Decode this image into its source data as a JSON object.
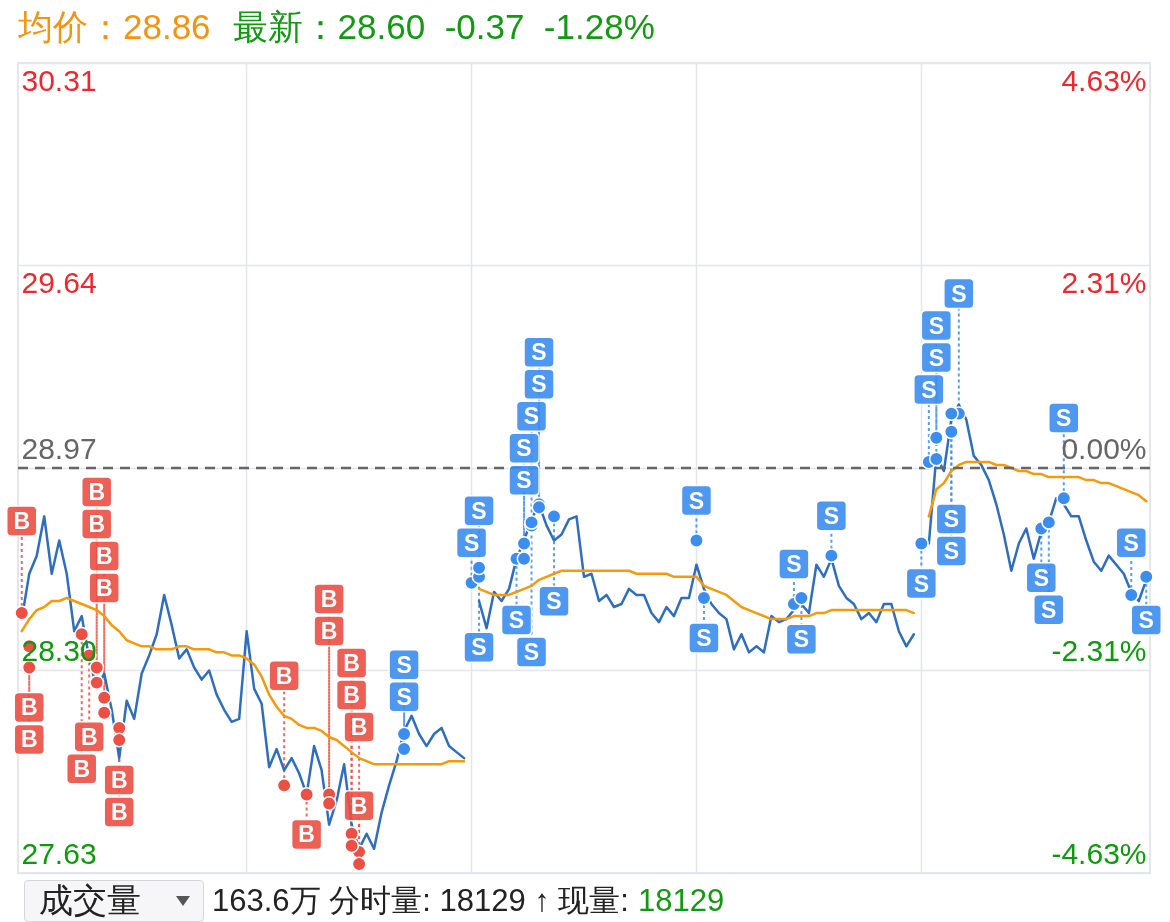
{
  "chart_data": {
    "type": "line",
    "title": "均价：28.86",
    "subtitle": "最新：28.60  -0.37  -1.28%",
    "annotations": [
      "成交量",
      "163.6万 分时量: 18129 ↑ 现量:",
      "18129"
    ],
    "categories": [
      null,
      null,
      null,
      null,
      null,
      null,
      null,
      null,
      null,
      null,
      null,
      null,
      null,
      null,
      null,
      null,
      null,
      null,
      null,
      null,
      null,
      null,
      null,
      null,
      null,
      null,
      null,
      null,
      null,
      null,
      null,
      null,
      null,
      null,
      null,
      null,
      null,
      null,
      null,
      null,
      null,
      null,
      null,
      null,
      null,
      null,
      null,
      null,
      null,
      null,
      null,
      null,
      null,
      null,
      null,
      null,
      null,
      null,
      null,
      null,
      null,
      null,
      null,
      null,
      null,
      null,
      null,
      null,
      null,
      null,
      null,
      null,
      null,
      null,
      null,
      null,
      null,
      null,
      null,
      null,
      null,
      null,
      null,
      null,
      null,
      null,
      null,
      null,
      null,
      null,
      null,
      null,
      null,
      null,
      null,
      null,
      null,
      null,
      null,
      null,
      null,
      null,
      null,
      null,
      null,
      null,
      null,
      null,
      null,
      null,
      null,
      null,
      null,
      null,
      null,
      null,
      null,
      null,
      null,
      null,
      null,
      null,
      null,
      null,
      null,
      null,
      null,
      null,
      null,
      null,
      null,
      null,
      null,
      null,
      null,
      null,
      null,
      null,
      null,
      null,
      null,
      null,
      null,
      null,
      null,
      null,
      null,
      null,
      null,
      null,
      null
    ],
    "series": [
      {
        "type": "line",
        "color": "#2f6ebf",
        "values": [
          28.47,
          28.62,
          28.68,
          28.81,
          28.62,
          28.73,
          28.62,
          28.43,
          28.48,
          28.34,
          28.24,
          28.29,
          28.17,
          28.01,
          28.2,
          28.14,
          28.29,
          28.35,
          28.42,
          28.55,
          28.45,
          28.34,
          28.37,
          28.31,
          28.27,
          28.3,
          28.22,
          28.17,
          28.13,
          28.14,
          28.43,
          28.24,
          28.19,
          27.98,
          28.04,
          27.97,
          28.01,
          27.96,
          27.89,
          28.05,
          27.97,
          27.79,
          27.87,
          27.99,
          27.79,
          27.71,
          27.76,
          27.71,
          27.83,
          27.92,
          28.0,
          28.1,
          28.15,
          28.09,
          28.05,
          28.09,
          28.11,
          28.05,
          28.03,
          28.01,
          null,
          28.53,
          28.44,
          28.56,
          28.53,
          28.57,
          28.67,
          28.73,
          28.8,
          28.85,
          28.78,
          28.73,
          28.75,
          28.8,
          28.81,
          28.61,
          28.62,
          28.53,
          28.55,
          28.51,
          28.52,
          28.57,
          28.55,
          28.55,
          28.49,
          28.46,
          28.51,
          28.48,
          28.54,
          28.54,
          28.65,
          28.57,
          28.52,
          28.49,
          28.47,
          28.37,
          28.42,
          28.36,
          28.38,
          28.36,
          28.48,
          28.46,
          28.47,
          28.5,
          28.52,
          28.49,
          28.65,
          28.61,
          28.67,
          28.58,
          28.54,
          28.52,
          28.47,
          28.49,
          28.46,
          28.52,
          28.52,
          28.43,
          28.38,
          28.42,
          null,
          28.72,
          29.01,
          28.96,
          29.13,
          29.18,
          29.13,
          29.01,
          28.98,
          28.93,
          28.85,
          28.75,
          28.63,
          28.72,
          28.77,
          28.67,
          28.76,
          28.79,
          28.87,
          28.85,
          28.81,
          28.81,
          28.73,
          28.66,
          28.63,
          28.68,
          28.65,
          28.62,
          28.56,
          28.53,
          28.6
        ]
      },
      {
        "type": "line",
        "color": "#f59a0c",
        "values": [
          28.43,
          28.47,
          28.5,
          28.51,
          28.53,
          28.53,
          28.54,
          28.53,
          28.52,
          28.51,
          28.5,
          28.48,
          28.45,
          28.43,
          28.4,
          28.39,
          28.38,
          28.38,
          28.37,
          28.37,
          28.37,
          28.38,
          28.38,
          28.37,
          28.37,
          28.37,
          28.36,
          28.36,
          28.35,
          28.35,
          28.34,
          28.32,
          28.28,
          28.22,
          28.18,
          28.15,
          28.14,
          28.12,
          28.11,
          28.11,
          28.1,
          28.08,
          28.07,
          28.05,
          28.03,
          28.01,
          28.0,
          27.99,
          27.99,
          27.99,
          27.99,
          27.99,
          27.99,
          27.99,
          27.99,
          27.99,
          27.99,
          28.0,
          28.0,
          28.0,
          null,
          28.57,
          28.56,
          28.55,
          28.55,
          28.55,
          28.56,
          28.57,
          28.58,
          28.6,
          28.61,
          28.62,
          28.63,
          28.63,
          28.63,
          28.63,
          28.63,
          28.63,
          28.63,
          28.63,
          28.63,
          28.63,
          28.62,
          28.62,
          28.62,
          28.62,
          28.62,
          28.61,
          28.61,
          28.61,
          28.61,
          28.58,
          28.57,
          28.56,
          28.55,
          28.53,
          28.51,
          28.5,
          28.49,
          28.48,
          28.47,
          28.47,
          28.47,
          28.48,
          28.48,
          28.48,
          28.49,
          28.49,
          28.5,
          28.5,
          28.5,
          28.5,
          28.5,
          28.5,
          28.5,
          28.5,
          28.5,
          28.5,
          28.5,
          28.49,
          null,
          28.81,
          28.9,
          28.92,
          28.96,
          28.98,
          28.99,
          28.99,
          28.99,
          28.99,
          28.98,
          28.98,
          28.97,
          28.96,
          28.96,
          28.95,
          28.95,
          28.94,
          28.94,
          28.94,
          28.94,
          28.94,
          28.93,
          28.93,
          28.92,
          28.92,
          28.91,
          28.9,
          28.89,
          28.88,
          28.86
        ]
      },
      {
        "type": "scatter",
        "color": "#ec4f44",
        "marker": "circle",
        "values": [
          28.49,
          28.38,
          null,
          null,
          null,
          null,
          null,
          null,
          28.42,
          28.35,
          28.31,
          28.21,
          null,
          28.11,
          null,
          null,
          null,
          null,
          null,
          null,
          null,
          null,
          null,
          null,
          null,
          null,
          null,
          null,
          null,
          null,
          null,
          null,
          null,
          null,
          null,
          27.92,
          null,
          null,
          27.89,
          null,
          null,
          27.89,
          null,
          null,
          27.76,
          27.7,
          null,
          null,
          null,
          null,
          null,
          null,
          null,
          null,
          null,
          null,
          null,
          null,
          null,
          null,
          null,
          null,
          null,
          null,
          null,
          null,
          null,
          null,
          null,
          null,
          null,
          null,
          null,
          null,
          null,
          null,
          null,
          null,
          null,
          null,
          null,
          null,
          null,
          null,
          null,
          null,
          null,
          null,
          null,
          null,
          null,
          null,
          null,
          null,
          null,
          null,
          null,
          null,
          null,
          null,
          null,
          null,
          null,
          null,
          null,
          null,
          null,
          null,
          null,
          null,
          null,
          null,
          null,
          null,
          null,
          null,
          null,
          null,
          null,
          null,
          null,
          null,
          null,
          null,
          null,
          null,
          null,
          null,
          null,
          null,
          null,
          null,
          null,
          null,
          null,
          null,
          null,
          null,
          null,
          null,
          null,
          null,
          null,
          null,
          null,
          null,
          null,
          null,
          null,
          null,
          null
        ],
        "value_labels": [
          "B",
          "B",
          null,
          null,
          null,
          null,
          null,
          null,
          "B",
          "B",
          "B",
          "B",
          null,
          "B",
          null,
          null,
          null,
          null,
          null,
          null,
          null,
          null,
          null,
          null,
          null,
          null,
          null,
          null,
          null,
          null,
          null,
          null,
          null,
          null,
          null,
          "B",
          null,
          null,
          "B",
          null,
          null,
          "B",
          null,
          null,
          "B",
          "B",
          null,
          null,
          null,
          null,
          null,
          null,
          null,
          null,
          null,
          null,
          null,
          null,
          null,
          null,
          null,
          null,
          null,
          null,
          null,
          null,
          null,
          null,
          null,
          null,
          null,
          null,
          null,
          null,
          null,
          null,
          null,
          null,
          null,
          null,
          null,
          null,
          null,
          null,
          null,
          null,
          null,
          null,
          null,
          null,
          null,
          null,
          null,
          null,
          null,
          null,
          null,
          null,
          null,
          null,
          null,
          null,
          null,
          null,
          null,
          null,
          null,
          null,
          null,
          null,
          null,
          null,
          null,
          null,
          null,
          null,
          null,
          null,
          null,
          null,
          null,
          null,
          null,
          null,
          null,
          null,
          null,
          null,
          null,
          null,
          null,
          null,
          null,
          null,
          null,
          null,
          null,
          null,
          null,
          null,
          null,
          null,
          null,
          null,
          null,
          null,
          null,
          null,
          null,
          null,
          null
        ]
      },
      {
        "type": "scatter",
        "color": "#ec4f44",
        "marker": "circle",
        "values": [
          null,
          28.31,
          null,
          null,
          null,
          null,
          null,
          null,
          null,
          null,
          28.26,
          28.16,
          null,
          28.07,
          null,
          null,
          null,
          null,
          null,
          null,
          null,
          null,
          null,
          null,
          null,
          null,
          null,
          null,
          null,
          null,
          null,
          null,
          null,
          null,
          null,
          null,
          null,
          null,
          null,
          null,
          null,
          27.86,
          null,
          null,
          27.72,
          27.66,
          null,
          null,
          null,
          null,
          null,
          null,
          null,
          null,
          null,
          null,
          null,
          null,
          null,
          null,
          null,
          null,
          null,
          null,
          null,
          null,
          null,
          null,
          null,
          null,
          null,
          null,
          null,
          null,
          null,
          null,
          null,
          null,
          null,
          null,
          null,
          null,
          null,
          null,
          null,
          null,
          null,
          null,
          null,
          null,
          null,
          null,
          null,
          null,
          null,
          null,
          null,
          null,
          null,
          null,
          null,
          null,
          null,
          null,
          null,
          null,
          null,
          null,
          null,
          null,
          null,
          null,
          null,
          null,
          null,
          null,
          null,
          null,
          null,
          null,
          null,
          null,
          null,
          null,
          null,
          null,
          null,
          null,
          null,
          null,
          null,
          null,
          null,
          null,
          null,
          null,
          null,
          null,
          null,
          null,
          null,
          null,
          null,
          null,
          null,
          null,
          null,
          null,
          null,
          null,
          null
        ],
        "value_labels": [
          null,
          "B",
          null,
          null,
          null,
          null,
          null,
          null,
          null,
          null,
          "B",
          "B",
          null,
          "B",
          null,
          null,
          null,
          null,
          null,
          null,
          null,
          null,
          null,
          null,
          null,
          null,
          null,
          null,
          null,
          null,
          null,
          null,
          null,
          null,
          null,
          null,
          null,
          null,
          null,
          null,
          null,
          "B",
          null,
          null,
          "B",
          "B",
          null,
          null,
          null,
          null,
          null,
          null,
          null,
          null,
          null,
          null,
          null,
          null,
          null,
          null,
          null,
          null,
          null,
          null,
          null,
          null,
          null,
          null,
          null,
          null,
          null,
          null,
          null,
          null,
          null,
          null,
          null,
          null,
          null,
          null,
          null,
          null,
          null,
          null,
          null,
          null,
          null,
          null,
          null,
          null,
          null,
          null,
          null,
          null,
          null,
          null,
          null,
          null,
          null,
          null,
          null,
          null,
          null,
          null,
          null,
          null,
          null,
          null,
          null,
          null,
          null,
          null,
          null,
          null,
          null,
          null,
          null,
          null,
          null,
          null,
          null,
          null,
          null,
          null,
          null,
          null,
          null,
          null,
          null,
          null,
          null,
          null,
          null,
          null,
          null,
          null,
          null,
          null,
          null,
          null,
          null,
          null,
          null,
          null,
          null,
          null,
          null,
          null,
          null,
          null,
          null
        ]
      },
      {
        "type": "scatter",
        "color": "#3b8df0",
        "marker": "circle",
        "values": [
          null,
          null,
          null,
          null,
          null,
          null,
          null,
          null,
          null,
          null,
          null,
          null,
          null,
          null,
          null,
          null,
          null,
          null,
          null,
          null,
          null,
          null,
          null,
          null,
          null,
          null,
          null,
          null,
          null,
          null,
          null,
          null,
          null,
          null,
          null,
          null,
          null,
          null,
          null,
          null,
          null,
          null,
          null,
          null,
          null,
          null,
          null,
          null,
          null,
          null,
          null,
          28.04,
          null,
          null,
          null,
          null,
          null,
          null,
          null,
          null,
          28.59,
          28.61,
          null,
          null,
          null,
          null,
          28.67,
          28.67,
          28.78,
          28.85,
          null,
          28.81,
          null,
          null,
          null,
          null,
          null,
          null,
          null,
          null,
          null,
          null,
          null,
          null,
          null,
          null,
          null,
          null,
          null,
          null,
          28.73,
          28.54,
          null,
          null,
          null,
          null,
          null,
          null,
          null,
          null,
          null,
          null,
          null,
          28.52,
          28.54,
          null,
          null,
          null,
          28.68,
          null,
          null,
          null,
          null,
          null,
          null,
          null,
          null,
          null,
          null,
          null,
          28.72,
          28.99,
          29.0,
          null,
          29.09,
          29.15,
          null,
          null,
          null,
          null,
          null,
          null,
          null,
          null,
          null,
          null,
          28.77,
          28.79,
          null,
          28.87,
          null,
          null,
          null,
          null,
          null,
          null,
          null,
          null,
          28.55,
          null,
          28.61
        ],
        "value_labels": [
          null,
          null,
          null,
          null,
          null,
          null,
          null,
          null,
          null,
          null,
          null,
          null,
          null,
          null,
          null,
          null,
          null,
          null,
          null,
          null,
          null,
          null,
          null,
          null,
          null,
          null,
          null,
          null,
          null,
          null,
          null,
          null,
          null,
          null,
          null,
          null,
          null,
          null,
          null,
          null,
          null,
          null,
          null,
          null,
          null,
          null,
          null,
          null,
          null,
          null,
          null,
          "S",
          null,
          null,
          null,
          null,
          null,
          null,
          null,
          null,
          "S",
          "S",
          null,
          null,
          null,
          null,
          "S",
          "S",
          "S",
          "S",
          null,
          "S",
          null,
          null,
          null,
          null,
          null,
          null,
          null,
          null,
          null,
          null,
          null,
          null,
          null,
          null,
          null,
          null,
          null,
          null,
          "S",
          "S",
          null,
          null,
          null,
          null,
          null,
          null,
          null,
          null,
          null,
          null,
          null,
          "S",
          "S",
          null,
          null,
          null,
          "S",
          null,
          null,
          null,
          null,
          null,
          null,
          null,
          null,
          null,
          null,
          null,
          "S",
          "S",
          "S",
          null,
          "S",
          "S",
          null,
          null,
          null,
          null,
          null,
          null,
          null,
          null,
          null,
          null,
          "S",
          "S",
          null,
          "S",
          null,
          null,
          null,
          null,
          null,
          null,
          null,
          null,
          "S",
          null,
          "S"
        ]
      },
      {
        "type": "scatter",
        "color": "#3b8df0",
        "marker": "circle",
        "values": [
          null,
          null,
          null,
          null,
          null,
          null,
          null,
          null,
          null,
          null,
          null,
          null,
          null,
          null,
          null,
          null,
          null,
          null,
          null,
          null,
          null,
          null,
          null,
          null,
          null,
          null,
          null,
          null,
          null,
          null,
          null,
          null,
          null,
          null,
          null,
          null,
          null,
          null,
          null,
          null,
          null,
          null,
          null,
          null,
          null,
          null,
          null,
          null,
          null,
          null,
          null,
          28.09,
          null,
          null,
          null,
          null,
          null,
          null,
          null,
          null,
          null,
          28.64,
          null,
          null,
          null,
          null,
          null,
          28.72,
          28.79,
          28.84,
          null,
          null,
          null,
          null,
          null,
          null,
          null,
          null,
          null,
          null,
          null,
          null,
          null,
          null,
          null,
          null,
          null,
          null,
          null,
          null,
          null,
          null,
          null,
          null,
          null,
          null,
          null,
          null,
          null,
          null,
          null,
          null,
          null,
          null,
          null,
          null,
          null,
          null,
          null,
          null,
          null,
          null,
          null,
          null,
          null,
          null,
          null,
          null,
          null,
          null,
          null,
          null,
          29.07,
          null,
          29.15,
          null,
          null,
          null,
          null,
          null,
          null,
          null,
          null,
          null,
          null,
          null,
          null,
          null,
          null,
          null,
          null,
          null,
          null,
          null,
          null,
          null,
          null,
          null,
          null,
          null,
          null
        ],
        "value_labels": [
          null,
          null,
          null,
          null,
          null,
          null,
          null,
          null,
          null,
          null,
          null,
          null,
          null,
          null,
          null,
          null,
          null,
          null,
          null,
          null,
          null,
          null,
          null,
          null,
          null,
          null,
          null,
          null,
          null,
          null,
          null,
          null,
          null,
          null,
          null,
          null,
          null,
          null,
          null,
          null,
          null,
          null,
          null,
          null,
          null,
          null,
          null,
          null,
          null,
          null,
          null,
          "S",
          null,
          null,
          null,
          null,
          null,
          null,
          null,
          null,
          null,
          "S",
          null,
          null,
          null,
          null,
          null,
          "S",
          "S",
          "S",
          null,
          null,
          null,
          null,
          null,
          null,
          null,
          null,
          null,
          null,
          null,
          null,
          null,
          null,
          null,
          null,
          null,
          null,
          null,
          null,
          null,
          null,
          null,
          null,
          null,
          null,
          null,
          null,
          null,
          null,
          null,
          null,
          null,
          null,
          null,
          null,
          null,
          null,
          null,
          null,
          null,
          null,
          null,
          null,
          null,
          null,
          null,
          null,
          null,
          null,
          null,
          null,
          "S",
          null,
          "S",
          null,
          null,
          null,
          null,
          null,
          null,
          null,
          null,
          null,
          null,
          null,
          null,
          null,
          null,
          null,
          null,
          null,
          null,
          null,
          null,
          null,
          null,
          null,
          null,
          null,
          null
        ]
      }
    ],
    "ylim": [
      27.63,
      30.31
    ],
    "yticks": [
      27.63,
      {
        "value": 28.3,
        "label": "28.30"
      },
      28.97,
      29.64,
      30.31
    ],
    "y2lim": [
      -4.63,
      4.63
    ],
    "y2ticks": [
      {
        "value": -4.63,
        "label": "-4.63%"
      },
      {
        "value": -2.31,
        "label": "-2.31%"
      },
      {
        "value": 0,
        "label": "0.00%"
      },
      {
        "value": 2.31,
        "label": "2.31%"
      },
      {
        "value": 4.63,
        "label": "4.63%"
      }
    ],
    "ref_lines": [
      {
        "axis": "y",
        "value": 28.97,
        "color": "#666666",
        "line_style": "dashed"
      }
    ],
    "grid": true
  }
}
